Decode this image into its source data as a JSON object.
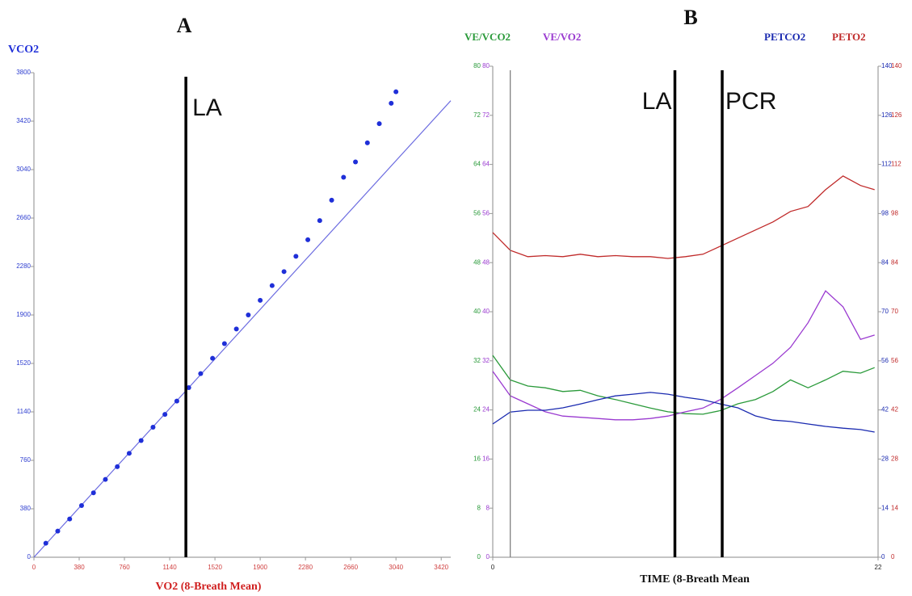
{
  "chart_data": [
    {
      "type": "scatter",
      "title": "A",
      "x_label": "VO2 (8-Breath Mean)",
      "y_label": "VCO2",
      "x": [
        100,
        200,
        300,
        400,
        500,
        600,
        700,
        800,
        900,
        1000,
        1100,
        1200,
        1300,
        1400,
        1500,
        1600,
        1700,
        1800,
        1900,
        2000,
        2100,
        2200,
        2300,
        2400,
        2500,
        2600,
        2700,
        2800,
        2900,
        3000,
        3040
      ],
      "values": [
        110,
        205,
        300,
        405,
        505,
        610,
        710,
        815,
        915,
        1020,
        1120,
        1225,
        1330,
        1440,
        1560,
        1675,
        1790,
        1900,
        2015,
        2130,
        2240,
        2360,
        2490,
        2640,
        2800,
        2980,
        3100,
        3250,
        3400,
        3560,
        3650
      ],
      "color": "#1f2fd8",
      "reference_line": {
        "x": [
          0,
          3500
        ],
        "values": [
          0,
          3580
        ],
        "color": "#6b6be0"
      },
      "xlim": [
        0,
        3500
      ],
      "xticks": [
        0,
        380,
        760,
        1140,
        1520,
        1900,
        2280,
        2660,
        3040,
        3420
      ],
      "ylim": [
        0,
        3800
      ],
      "yticks": [
        0,
        380,
        760,
        1140,
        1520,
        1900,
        2280,
        2660,
        3040,
        3420,
        3800
      ],
      "markers": [
        {
          "x": 1276,
          "label": "LA",
          "color": "#000000"
        }
      ]
    },
    {
      "type": "line",
      "title": "B",
      "x_label": "TIME (8-Breath Mean",
      "x": [
        0,
        1,
        2,
        3,
        4,
        5,
        6,
        7,
        8,
        9,
        10,
        11,
        12,
        13,
        14,
        15,
        16,
        17,
        18,
        19,
        20,
        21,
        21.8
      ],
      "series": [
        {
          "name": "VE/VCO2",
          "color": "#2a9a3a",
          "axis": "y",
          "values": [
            32.9,
            28.9,
            27.9,
            27.6,
            27,
            27.2,
            26.3,
            25.7,
            25,
            24.3,
            23.7,
            23.4,
            23.3,
            23.9,
            25,
            25.7,
            27,
            28.9,
            27.6,
            28.9,
            30.3,
            30,
            30.9
          ]
        },
        {
          "name": "VE/VO2",
          "color": "#9a3ad0",
          "axis": "y",
          "values": [
            30.3,
            26.3,
            25,
            23.7,
            23,
            22.8,
            22.6,
            22.4,
            22.4,
            22.6,
            23,
            23.7,
            24.3,
            25.7,
            27.6,
            29.6,
            31.6,
            34.2,
            38.2,
            43.4,
            40.8,
            35.5,
            36.2
          ]
        },
        {
          "name": "PETCO2",
          "color": "#1a2ab0",
          "axis": "y2",
          "values": [
            38,
            41.4,
            41.9,
            41.9,
            42.6,
            43.7,
            44.9,
            46,
            46.5,
            47,
            46.5,
            45.6,
            44.9,
            43.7,
            42.6,
            40.3,
            39.1,
            38.7,
            38,
            37.3,
            36.8,
            36.4,
            35.7
          ]
        },
        {
          "name": "PETO2",
          "color": "#c02a2a",
          "axis": "y2",
          "values": [
            92.6,
            87.5,
            85.7,
            86,
            85.7,
            86.4,
            85.7,
            86,
            85.7,
            85.7,
            85.2,
            85.7,
            86.4,
            88.7,
            91,
            93.3,
            95.6,
            98.6,
            100,
            104.8,
            108.7,
            106,
            104.8
          ]
        }
      ],
      "xlim": [
        0,
        22
      ],
      "xticks": [
        0,
        22
      ],
      "ylim": [
        0,
        80
      ],
      "yticks": [
        0,
        8,
        16,
        24,
        32,
        40,
        48,
        56,
        64,
        72,
        80
      ],
      "y2lim": [
        0,
        140
      ],
      "y2ticks": [
        0,
        14,
        28,
        42,
        56,
        70,
        84,
        98,
        112,
        126,
        140
      ],
      "markers": [
        {
          "x": 1,
          "color": "#777777"
        },
        {
          "x": 10.4,
          "label": "LA",
          "color": "#000000"
        },
        {
          "x": 13.1,
          "label": "PCR",
          "color": "#000000"
        }
      ]
    }
  ]
}
